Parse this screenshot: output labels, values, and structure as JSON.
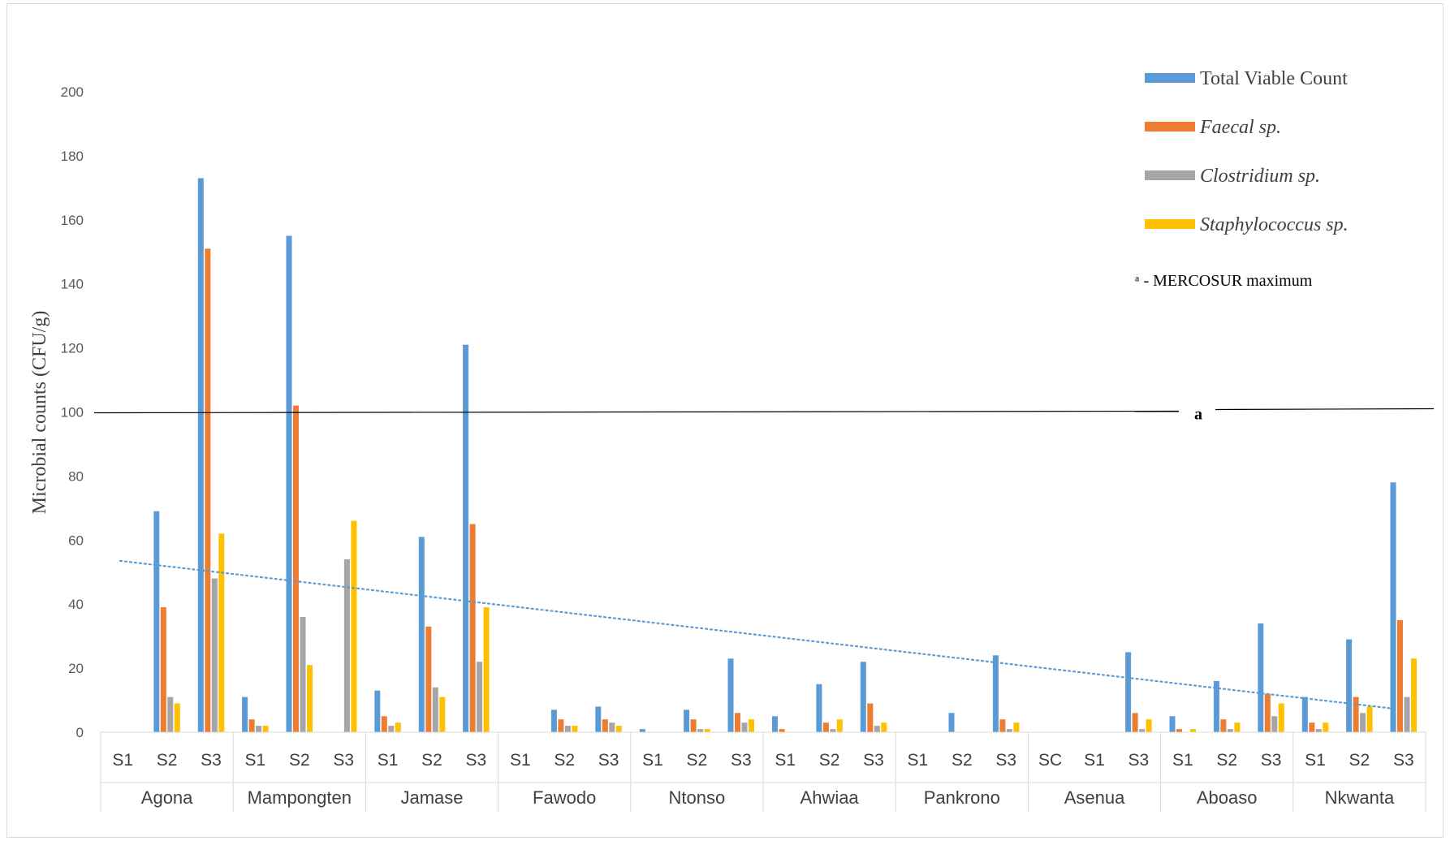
{
  "chart_data": {
    "type": "bar",
    "ylabel": "Microbial counts (CFU/g)",
    "ylim": [
      0,
      200
    ],
    "ytick_step": 20,
    "y_ticks": [
      "0",
      "20",
      "40",
      "60",
      "80",
      "100",
      "120",
      "140",
      "160",
      "180",
      "200"
    ],
    "groups": [
      {
        "name": "Agona",
        "categories": [
          "S1",
          "S2",
          "S3"
        ]
      },
      {
        "name": "Mampongten",
        "categories": [
          "S1",
          "S2",
          "S3"
        ]
      },
      {
        "name": "Jamase",
        "categories": [
          "S1",
          "S2",
          "S3"
        ]
      },
      {
        "name": "Fawodo",
        "categories": [
          "S1",
          "S2",
          "S3"
        ]
      },
      {
        "name": "Ntonso",
        "categories": [
          "S1",
          "S2",
          "S3"
        ]
      },
      {
        "name": "Ahwiaa",
        "categories": [
          "S1",
          "S2",
          "S3"
        ]
      },
      {
        "name": "Pankrono",
        "categories": [
          "S1",
          "S2",
          "S3"
        ]
      },
      {
        "name": "Asenua",
        "categories": [
          "SC",
          "S1",
          "S3"
        ]
      },
      {
        "name": "Aboaso",
        "categories": [
          "S1",
          "S2",
          "S3"
        ]
      },
      {
        "name": "Nkwanta",
        "categories": [
          "S1",
          "S2",
          "S3"
        ]
      }
    ],
    "series": [
      {
        "name": "Total Viable Count",
        "italic": false,
        "color": "#5b9bd5",
        "values": [
          0,
          69,
          173,
          11,
          155,
          0,
          13,
          61,
          121,
          0,
          7,
          8,
          1,
          7,
          23,
          5,
          15,
          22,
          0,
          6,
          24,
          0,
          0,
          25,
          5,
          16,
          34,
          11,
          29,
          78
        ]
      },
      {
        "name": "Faecal sp.",
        "italic": true,
        "color": "#ed7d31",
        "values": [
          0,
          39,
          151,
          4,
          102,
          0,
          5,
          33,
          65,
          0,
          4,
          4,
          0,
          4,
          6,
          1,
          3,
          9,
          0,
          0,
          4,
          0,
          0,
          6,
          1,
          4,
          12,
          3,
          11,
          35
        ]
      },
      {
        "name": "Clostridium sp.",
        "italic": true,
        "color": "#a5a5a5",
        "values": [
          0,
          11,
          48,
          2,
          36,
          54,
          2,
          14,
          22,
          0,
          2,
          3,
          0,
          1,
          3,
          0,
          1,
          2,
          0,
          0,
          1,
          0,
          0,
          1,
          0,
          1,
          5,
          1,
          6,
          11
        ]
      },
      {
        "name": "Staphylococcus sp.",
        "italic": true,
        "color": "#ffc000",
        "values": [
          0,
          9,
          62,
          2,
          21,
          66,
          3,
          11,
          39,
          0,
          2,
          2,
          0,
          1,
          4,
          0,
          4,
          3,
          0,
          0,
          3,
          0,
          0,
          4,
          1,
          3,
          9,
          3,
          8,
          23
        ]
      }
    ],
    "reference_line": {
      "value": 100,
      "marker": "a",
      "label": "ᵃ - MERCOSUR maximum",
      "color": "#000000"
    },
    "trendline": {
      "type": "linear",
      "style": "dotted",
      "color": "#5b9bd5",
      "start_value": 53.5,
      "end_value": 7.5
    },
    "legend_position": "top-right",
    "grid": false
  }
}
